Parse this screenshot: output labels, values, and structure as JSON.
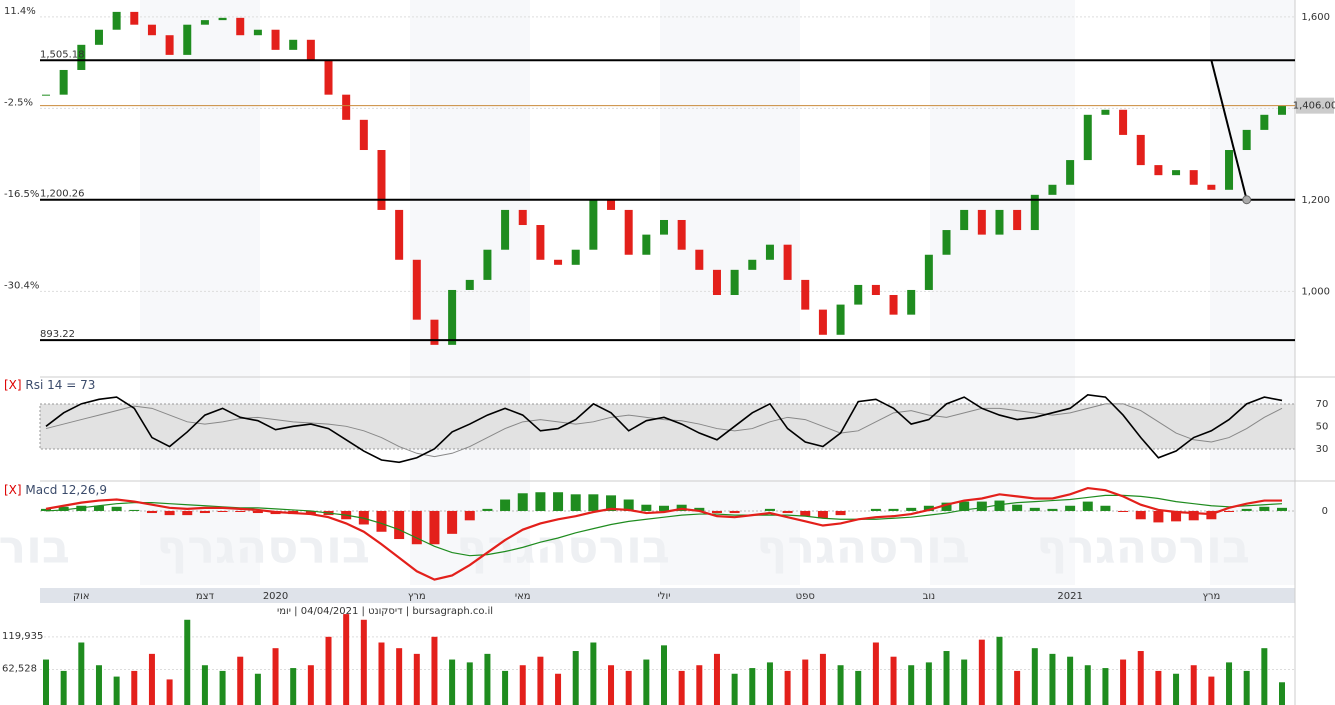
{
  "chart_data": {
    "type": "candlestick",
    "footer": "bursagraph.co.il | דיסקונט | 04/04/2021 | יומי",
    "watermark": "בורסהגרף",
    "categories": [
      null,
      null,
      "אוק",
      null,
      null,
      null,
      null,
      null,
      null,
      "דצמ",
      null,
      null,
      null,
      "2020",
      null,
      null,
      null,
      null,
      null,
      null,
      null,
      "מרץ",
      null,
      null,
      null,
      null,
      null,
      "מאי",
      null,
      null,
      null,
      null,
      null,
      null,
      null,
      "יולי",
      null,
      null,
      null,
      null,
      null,
      null,
      null,
      "ספט",
      null,
      null,
      null,
      null,
      null,
      null,
      "נוב",
      null,
      null,
      null,
      null,
      null,
      null,
      null,
      "2021",
      null,
      null,
      null,
      null,
      null,
      null,
      null,
      "מרץ",
      null,
      null,
      null,
      null
    ],
    "close": [
      1430,
      1484,
      1539,
      1572,
      1611,
      1583,
      1560,
      1517,
      1583,
      1593,
      1598,
      1560,
      1572,
      1528,
      1550,
      1506,
      1430,
      1375,
      1309,
      1178,
      1069,
      938,
      883,
      1003,
      1025,
      1091,
      1178,
      1145,
      1069,
      1058,
      1091,
      1200,
      1178,
      1080,
      1124,
      1156,
      1091,
      1047,
      992,
      1047,
      1069,
      1102,
      1025,
      960,
      905,
      971,
      1014,
      992,
      949,
      1003,
      1080,
      1134,
      1178,
      1124,
      1178,
      1134,
      1211,
      1233,
      1287,
      1386,
      1397,
      1342,
      1276,
      1254,
      1265,
      1233,
      1222,
      1309,
      1353,
      1386,
      1406
    ],
    "up_color": "#1f8c1f",
    "down_color": "#e3201b",
    "ylim": [
      828,
      1637
    ],
    "yticks": [
      {
        "value": 1600,
        "label": "1,600"
      },
      {
        "value": 1200,
        "label": "1,200"
      },
      {
        "value": 1000,
        "label": "1,000"
      }
    ],
    "y2ticks": [
      {
        "value": 1600,
        "label": "11.4%"
      },
      {
        "value": 1400,
        "label": "-2.5%"
      },
      {
        "value": 1200,
        "label": "-16.5%"
      },
      {
        "value": 1000,
        "label": "-30.4%"
      }
    ],
    "levels": [
      {
        "value": 1505.18,
        "label": "1,505.18"
      },
      {
        "value": 1200.26,
        "label": "1,200.26"
      },
      {
        "value": 893.22,
        "label": "893.22"
      }
    ],
    "last_price": {
      "value": 1406,
      "label": "1,406.00"
    },
    "trend_line": {
      "x": [
        66,
        68
      ],
      "y": [
        1505.18,
        1200.26
      ]
    },
    "rsi": {
      "label": "[X]",
      "title": "Rsi 14 = 73",
      "ylim": [
        4,
        93
      ],
      "yticks": [
        70,
        50,
        30
      ],
      "values": [
        50,
        62,
        70,
        74,
        76,
        66,
        40,
        32,
        45,
        60,
        66,
        58,
        55,
        47,
        50,
        52,
        48,
        38,
        28,
        20,
        18,
        22,
        30,
        45,
        52,
        60,
        66,
        60,
        46,
        48,
        56,
        70,
        62,
        46,
        55,
        58,
        52,
        44,
        38,
        50,
        62,
        70,
        48,
        36,
        32,
        44,
        72,
        74,
        66,
        52,
        56,
        70,
        76,
        66,
        60,
        56,
        58,
        62,
        66,
        78,
        76,
        60,
        40,
        22,
        28,
        40,
        46,
        56,
        70,
        76,
        73
      ],
      "ma": [
        48,
        52,
        56,
        60,
        64,
        68,
        66,
        60,
        54,
        52,
        54,
        57,
        58,
        56,
        54,
        53,
        52,
        50,
        46,
        40,
        32,
        26,
        23,
        26,
        32,
        40,
        48,
        54,
        56,
        54,
        52,
        54,
        58,
        60,
        58,
        56,
        55,
        52,
        48,
        46,
        48,
        54,
        58,
        56,
        50,
        44,
        46,
        54,
        62,
        64,
        60,
        58,
        62,
        66,
        66,
        64,
        62,
        60,
        62,
        66,
        70,
        70,
        64,
        54,
        44,
        38,
        36,
        40,
        48,
        58,
        66
      ]
    },
    "macd": {
      "label": "[X]",
      "title": "Macd 12,26,9",
      "ylim": [
        -76,
        24
      ],
      "yticks": [
        0
      ],
      "values": [
        2,
        5,
        8,
        10,
        11,
        9,
        6,
        3,
        2,
        3,
        3,
        2,
        1,
        -1,
        -2,
        -3,
        -6,
        -12,
        -20,
        -32,
        -45,
        -58,
        -66,
        -62,
        -52,
        -40,
        -28,
        -18,
        -12,
        -8,
        -5,
        -1,
        2,
        1,
        -2,
        -1,
        2,
        0,
        -5,
        -6,
        -4,
        -2,
        -6,
        -10,
        -14,
        -12,
        -8,
        -6,
        -5,
        -3,
        1,
        6,
        10,
        12,
        16,
        14,
        12,
        12,
        16,
        22,
        20,
        14,
        6,
        1,
        -1,
        -2,
        -3,
        3,
        7,
        10,
        10
      ],
      "signal": [
        0,
        1,
        3,
        5,
        7,
        8,
        8,
        7,
        6,
        5,
        4,
        3,
        3,
        2,
        1,
        0,
        -2,
        -4,
        -7,
        -12,
        -18,
        -26,
        -34,
        -40,
        -43,
        -42,
        -39,
        -35,
        -30,
        -26,
        -21,
        -17,
        -13,
        -10,
        -8,
        -6,
        -4,
        -3,
        -3,
        -4,
        -4,
        -4,
        -4,
        -5,
        -7,
        -8,
        -8,
        -8,
        -7,
        -6,
        -4,
        -2,
        1,
        3,
        6,
        8,
        9,
        10,
        11,
        13,
        15,
        15,
        14,
        12,
        9,
        7,
        5,
        4,
        5,
        6,
        7
      ],
      "histogram": [
        2,
        4,
        5,
        5,
        4,
        1,
        -2,
        -4,
        -4,
        -2,
        -1,
        -1,
        -2,
        -3,
        -3,
        -3,
        -4,
        -8,
        -13,
        -20,
        -27,
        -32,
        -32,
        -22,
        -9,
        2,
        11,
        17,
        18,
        18,
        16,
        16,
        15,
        11,
        6,
        5,
        6,
        3,
        -2,
        -2,
        0,
        2,
        -2,
        -5,
        -7,
        -4,
        0,
        2,
        2,
        3,
        5,
        8,
        9,
        9,
        10,
        6,
        3,
        2,
        5,
        9,
        5,
        -1,
        -8,
        -11,
        -10,
        -9,
        -8,
        -1,
        2,
        4,
        3
      ]
    },
    "volume": {
      "ylim": [
        0,
        176000
      ],
      "yticks": [
        {
          "value": 119935,
          "label": "119,935"
        },
        {
          "value": 62528,
          "label": "62,528"
        }
      ],
      "values": [
        80000,
        60000,
        110000,
        70000,
        50000,
        60000,
        90000,
        45000,
        150000,
        70000,
        60000,
        85000,
        55000,
        100000,
        65000,
        70000,
        120000,
        160000,
        150000,
        110000,
        100000,
        90000,
        120000,
        80000,
        75000,
        90000,
        60000,
        70000,
        85000,
        55000,
        95000,
        110000,
        70000,
        60000,
        80000,
        105000,
        60000,
        70000,
        90000,
        55000,
        65000,
        75000,
        60000,
        80000,
        90000,
        70000,
        60000,
        110000,
        85000,
        70000,
        75000,
        95000,
        80000,
        115000,
        120000,
        60000,
        100000,
        90000,
        85000,
        70000,
        65000,
        80000,
        95000,
        60000,
        55000,
        70000,
        50000,
        75000,
        60000,
        100000,
        40000
      ]
    }
  }
}
